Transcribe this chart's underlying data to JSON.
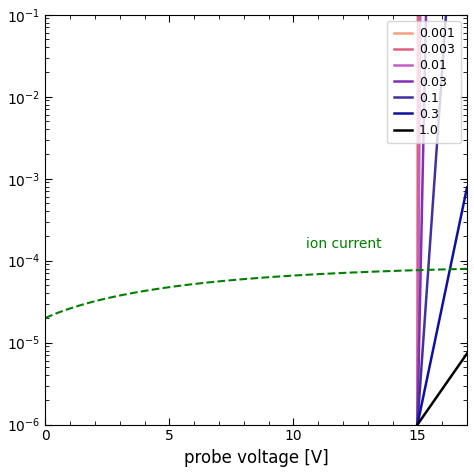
{
  "title": "",
  "xlabel": "probe voltage [V]",
  "ylabel": "",
  "xlim": [
    0,
    17
  ],
  "ylim_log": [
    -6,
    -1
  ],
  "series": [
    {
      "label": "0.001",
      "color": "#f5a080",
      "Te": 0.001
    },
    {
      "label": "0.003",
      "color": "#e06080",
      "Te": 0.003
    },
    {
      "label": "0.01",
      "color": "#c060c0",
      "Te": 0.01
    },
    {
      "label": "0.03",
      "color": "#8030b0",
      "Te": 0.03
    },
    {
      "label": "0.1",
      "color": "#4030a0",
      "Te": 0.1
    },
    {
      "label": "0.3",
      "color": "#1010a0",
      "Te": 0.3
    },
    {
      "label": "1.0",
      "color": "#000000",
      "Te": 1.0
    }
  ],
  "ion_current_label": "ion current",
  "ion_color": "#008000",
  "Vp": 15.0,
  "I_sat": 1e-06,
  "background_color": "#ffffff"
}
